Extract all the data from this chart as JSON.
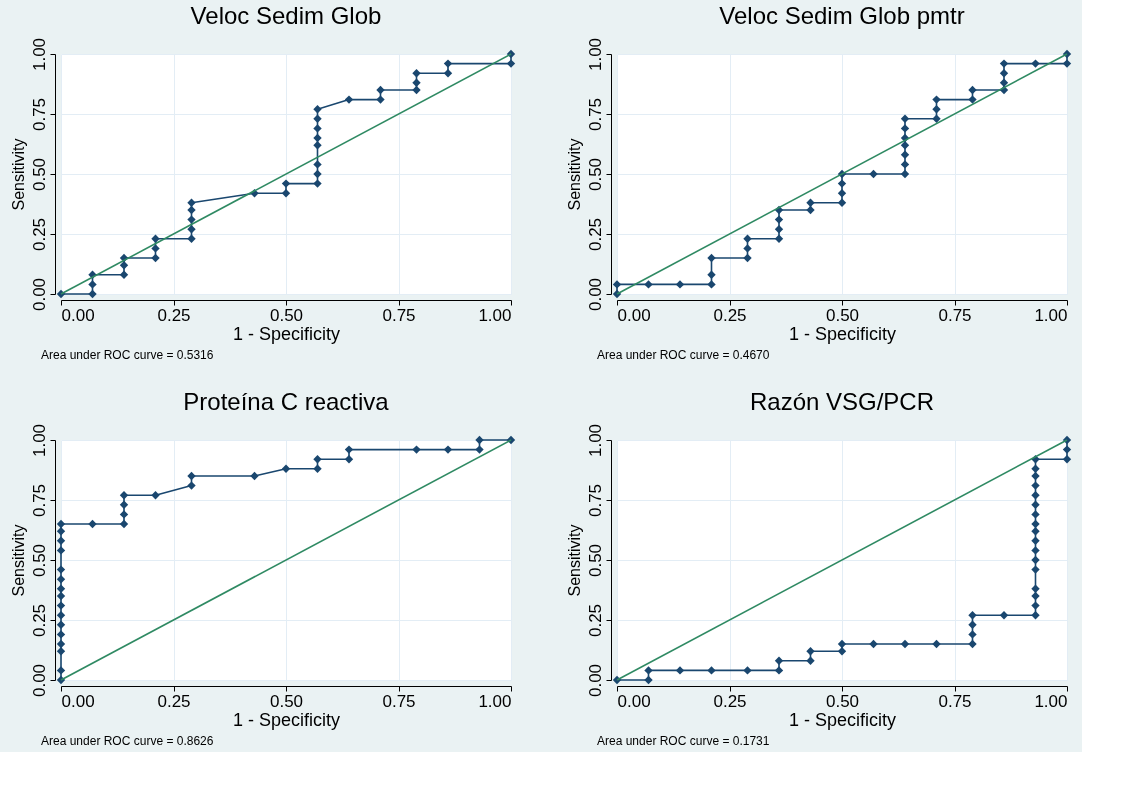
{
  "chart_data": [
    {
      "type": "line",
      "title": "Veloc Sedim Glob",
      "xlabel": "1 - Specificity",
      "ylabel": "Sensitivity",
      "xlim": [
        0,
        1
      ],
      "ylim": [
        0,
        1
      ],
      "xticks": [
        {
          "value": 0,
          "label": "0.00"
        },
        {
          "value": 0.25,
          "label": "0.25"
        },
        {
          "value": 0.5,
          "label": "0.50"
        },
        {
          "value": 0.75,
          "label": "0.75"
        },
        {
          "value": 1,
          "label": "1.00"
        }
      ],
      "yticks": [
        {
          "value": 0,
          "label": "0.00"
        },
        {
          "value": 0.25,
          "label": "0.25"
        },
        {
          "value": 0.5,
          "label": "0.50"
        },
        {
          "value": 0.75,
          "label": "0.75"
        },
        {
          "value": 1,
          "label": "1.00"
        }
      ],
      "grid": true,
      "annotations": [
        "Area under ROC curve = 0.5316"
      ],
      "series": [
        {
          "color": "#1a476f",
          "marker": "diamond",
          "x": [
            0,
            0.07,
            0.07,
            0.07,
            0.14,
            0.14,
            0.14,
            0.21,
            0.21,
            0.21,
            0.29,
            0.29,
            0.29,
            0.29,
            0.29,
            0.43,
            0.5,
            0.5,
            0.57,
            0.57,
            0.57,
            0.57,
            0.57,
            0.57,
            0.57,
            0.57,
            0.64,
            0.71,
            0.71,
            0.79,
            0.79,
            0.79,
            0.86,
            0.86,
            1,
            1
          ],
          "values": [
            0,
            0,
            0.04,
            0.08,
            0.08,
            0.12,
            0.15,
            0.15,
            0.19,
            0.23,
            0.23,
            0.27,
            0.31,
            0.35,
            0.38,
            0.42,
            0.42,
            0.46,
            0.46,
            0.5,
            0.54,
            0.62,
            0.65,
            0.69,
            0.73,
            0.77,
            0.81,
            0.81,
            0.85,
            0.85,
            0.88,
            0.92,
            0.92,
            0.96,
            0.96,
            1
          ]
        },
        {
          "color": "#2f8a63",
          "marker": "none",
          "x": [
            0,
            1
          ],
          "values": [
            0,
            1
          ]
        }
      ]
    },
    {
      "type": "line",
      "title": "Veloc Sedim Glob pmtr",
      "xlabel": "1 - Specificity",
      "ylabel": "Sensitivity",
      "xlim": [
        0,
        1
      ],
      "ylim": [
        0,
        1
      ],
      "xticks": [
        {
          "value": 0,
          "label": "0.00"
        },
        {
          "value": 0.25,
          "label": "0.25"
        },
        {
          "value": 0.5,
          "label": "0.50"
        },
        {
          "value": 0.75,
          "label": "0.75"
        },
        {
          "value": 1,
          "label": "1.00"
        }
      ],
      "yticks": [
        {
          "value": 0,
          "label": "0.00"
        },
        {
          "value": 0.25,
          "label": "0.25"
        },
        {
          "value": 0.5,
          "label": "0.50"
        },
        {
          "value": 0.75,
          "label": "0.75"
        },
        {
          "value": 1,
          "label": "1.00"
        }
      ],
      "grid": true,
      "annotations": [
        "Area under ROC curve = 0.4670"
      ],
      "series": [
        {
          "color": "#1a476f",
          "marker": "diamond",
          "x": [
            0,
            0,
            0.07,
            0.14,
            0.21,
            0.21,
            0.21,
            0.29,
            0.29,
            0.29,
            0.36,
            0.36,
            0.36,
            0.36,
            0.43,
            0.43,
            0.5,
            0.5,
            0.5,
            0.5,
            0.57,
            0.64,
            0.64,
            0.64,
            0.64,
            0.64,
            0.64,
            0.64,
            0.71,
            0.71,
            0.71,
            0.79,
            0.79,
            0.86,
            0.86,
            0.86,
            0.86,
            0.93,
            1,
            1
          ],
          "values": [
            0,
            0.04,
            0.04,
            0.04,
            0.04,
            0.08,
            0.15,
            0.15,
            0.19,
            0.23,
            0.23,
            0.27,
            0.31,
            0.35,
            0.35,
            0.38,
            0.38,
            0.42,
            0.46,
            0.5,
            0.5,
            0.5,
            0.54,
            0.58,
            0.62,
            0.65,
            0.69,
            0.73,
            0.73,
            0.77,
            0.81,
            0.81,
            0.85,
            0.85,
            0.88,
            0.92,
            0.96,
            0.96,
            0.96,
            1
          ]
        },
        {
          "color": "#2f8a63",
          "marker": "none",
          "x": [
            0,
            1
          ],
          "values": [
            0,
            1
          ]
        }
      ]
    },
    {
      "type": "line",
      "title": "Proteína C reactiva",
      "xlabel": "1 - Specificity",
      "ylabel": "Sensitivity",
      "xlim": [
        0,
        1
      ],
      "ylim": [
        0,
        1
      ],
      "xticks": [
        {
          "value": 0,
          "label": "0.00"
        },
        {
          "value": 0.25,
          "label": "0.25"
        },
        {
          "value": 0.5,
          "label": "0.50"
        },
        {
          "value": 0.75,
          "label": "0.75"
        },
        {
          "value": 1,
          "label": "1.00"
        }
      ],
      "yticks": [
        {
          "value": 0,
          "label": "0.00"
        },
        {
          "value": 0.25,
          "label": "0.25"
        },
        {
          "value": 0.5,
          "label": "0.50"
        },
        {
          "value": 0.75,
          "label": "0.75"
        },
        {
          "value": 1,
          "label": "1.00"
        }
      ],
      "grid": true,
      "annotations": [
        "Area under ROC curve = 0.8626"
      ],
      "series": [
        {
          "color": "#1a476f",
          "marker": "diamond",
          "x": [
            0,
            0,
            0,
            0,
            0,
            0,
            0,
            0,
            0,
            0,
            0,
            0,
            0,
            0,
            0,
            0,
            0.07,
            0.14,
            0.14,
            0.14,
            0.14,
            0.21,
            0.29,
            0.29,
            0.43,
            0.5,
            0.57,
            0.57,
            0.64,
            0.64,
            0.79,
            0.86,
            0.93,
            0.93,
            1
          ],
          "values": [
            0,
            0.04,
            0.12,
            0.15,
            0.19,
            0.23,
            0.27,
            0.31,
            0.35,
            0.38,
            0.42,
            0.46,
            0.54,
            0.58,
            0.62,
            0.65,
            0.65,
            0.65,
            0.69,
            0.73,
            0.77,
            0.77,
            0.81,
            0.85,
            0.85,
            0.88,
            0.88,
            0.92,
            0.92,
            0.96,
            0.96,
            0.96,
            0.96,
            1,
            1
          ]
        },
        {
          "color": "#2f8a63",
          "marker": "none",
          "x": [
            0,
            1
          ],
          "values": [
            0,
            1
          ]
        }
      ]
    },
    {
      "type": "line",
      "title": "Razón VSG/PCR",
      "xlabel": "1 - Specificity",
      "ylabel": "Sensitivity",
      "xlim": [
        0,
        1
      ],
      "ylim": [
        0,
        1
      ],
      "xticks": [
        {
          "value": 0,
          "label": "0.00"
        },
        {
          "value": 0.25,
          "label": "0.25"
        },
        {
          "value": 0.5,
          "label": "0.50"
        },
        {
          "value": 0.75,
          "label": "0.75"
        },
        {
          "value": 1,
          "label": "1.00"
        }
      ],
      "yticks": [
        {
          "value": 0,
          "label": "0.00"
        },
        {
          "value": 0.25,
          "label": "0.25"
        },
        {
          "value": 0.5,
          "label": "0.50"
        },
        {
          "value": 0.75,
          "label": "0.75"
        },
        {
          "value": 1,
          "label": "1.00"
        }
      ],
      "grid": true,
      "annotations": [
        "Area under ROC curve = 0.1731"
      ],
      "series": [
        {
          "color": "#1a476f",
          "marker": "diamond",
          "x": [
            0,
            0.07,
            0.07,
            0.14,
            0.21,
            0.29,
            0.36,
            0.36,
            0.43,
            0.43,
            0.5,
            0.5,
            0.57,
            0.64,
            0.71,
            0.79,
            0.79,
            0.79,
            0.79,
            0.86,
            0.93,
            0.93,
            0.93,
            0.93,
            0.93,
            0.93,
            0.93,
            0.93,
            0.93,
            0.93,
            0.93,
            0.93,
            0.93,
            0.93,
            0.93,
            0.93,
            0.93,
            1,
            1,
            1
          ],
          "values": [
            0,
            0,
            0.04,
            0.04,
            0.04,
            0.04,
            0.04,
            0.08,
            0.08,
            0.12,
            0.12,
            0.15,
            0.15,
            0.15,
            0.15,
            0.15,
            0.19,
            0.23,
            0.27,
            0.27,
            0.27,
            0.31,
            0.35,
            0.38,
            0.46,
            0.5,
            0.54,
            0.58,
            0.62,
            0.65,
            0.69,
            0.73,
            0.77,
            0.81,
            0.85,
            0.88,
            0.92,
            0.92,
            0.96,
            1
          ]
        },
        {
          "color": "#2f8a63",
          "marker": "none",
          "x": [
            0,
            1
          ],
          "values": [
            0,
            1
          ]
        }
      ]
    }
  ]
}
